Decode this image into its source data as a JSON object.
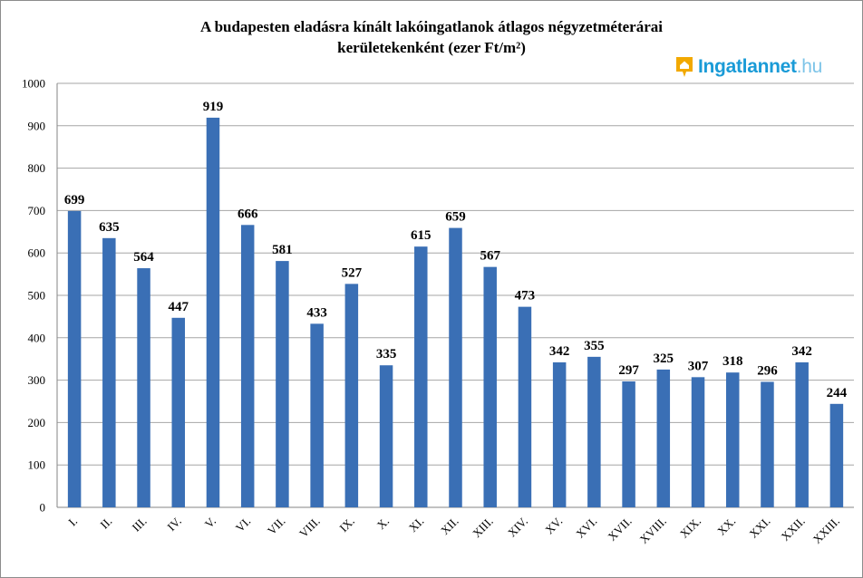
{
  "title": {
    "line1": "A budapesten eladásra kínált lakóingatlanok átlagos négyzetméterárai",
    "line2": "kerületekenként (ezer Ft/m²)"
  },
  "logo": {
    "icon": "house-pin-icon",
    "brand": "Ingatlannet",
    "tld": ".hu",
    "color": "#1a9bd7"
  },
  "chart_data": {
    "type": "bar",
    "title": "A budapesten eladásra kínált lakóingatlanok átlagos négyzetméterárai kerületekenként (ezer Ft/m²)",
    "categories": [
      "I.",
      "II.",
      "III.",
      "IV.",
      "V.",
      "VI.",
      "VII.",
      "VIII.",
      "IX.",
      "X.",
      "XI.",
      "XII.",
      "XIII.",
      "XIV.",
      "XV.",
      "XVI.",
      "XVII.",
      "XVIII.",
      "XIX.",
      "XX.",
      "XXI.",
      "XXII.",
      "XXIII."
    ],
    "values": [
      699,
      635,
      564,
      447,
      919,
      666,
      581,
      433,
      527,
      335,
      615,
      659,
      567,
      473,
      342,
      355,
      297,
      325,
      307,
      318,
      296,
      342,
      244
    ],
    "ylim": [
      0,
      1000
    ],
    "yticks": [
      0,
      100,
      200,
      300,
      400,
      500,
      600,
      700,
      800,
      900,
      1000
    ],
    "grid": true,
    "bar_color": "#3a6fb5",
    "grid_color": "#a6a6a6",
    "xlabel": "",
    "ylabel": ""
  }
}
